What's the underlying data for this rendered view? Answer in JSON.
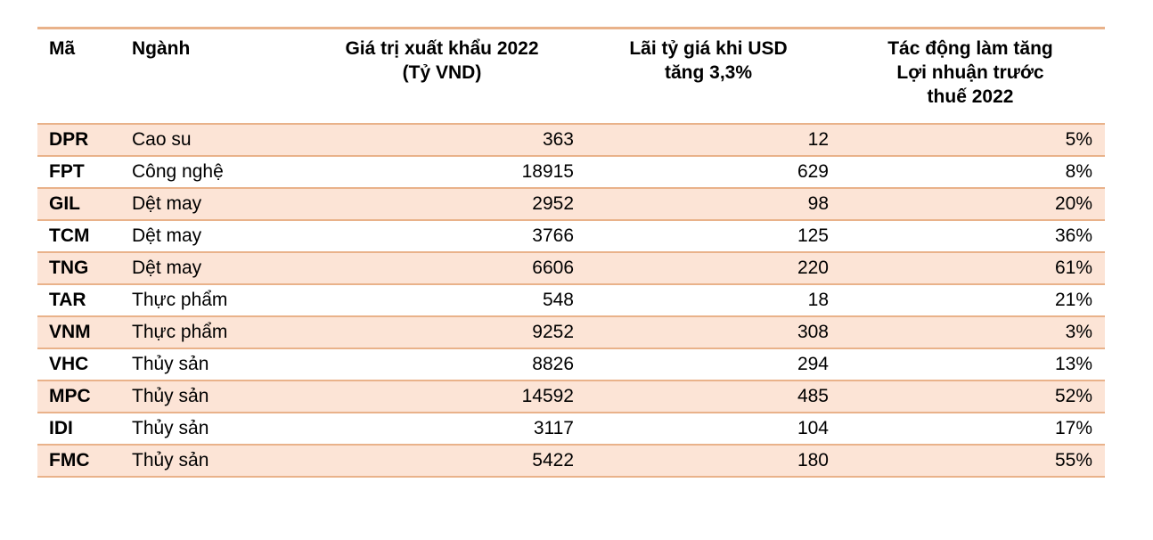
{
  "chart_data": {
    "type": "table",
    "columns": [
      {
        "label": "Mã",
        "align": "left"
      },
      {
        "label": "Ngành",
        "align": "left"
      },
      {
        "label": "Giá trị xuất khẩu 2022\n(Tỷ VND)",
        "align": "center"
      },
      {
        "label": "Lãi tỷ giá khi USD\ntăng 3,3%",
        "align": "center"
      },
      {
        "label": "Tác động làm tăng\nLợi nhuận trước\nthuế 2022",
        "align": "center"
      }
    ],
    "rows": [
      [
        "DPR",
        "Cao su",
        "363",
        "12",
        "5%"
      ],
      [
        "FPT",
        "Công nghệ",
        "18915",
        "629",
        "8%"
      ],
      [
        "GIL",
        "Dệt may",
        "2952",
        "98",
        "20%"
      ],
      [
        "TCM",
        "Dệt may",
        "3766",
        "125",
        "36%"
      ],
      [
        "TNG",
        "Dệt may",
        "6606",
        "220",
        "61%"
      ],
      [
        "TAR",
        "Thực phẩm",
        "548",
        "18",
        "21%"
      ],
      [
        "VNM",
        "Thực phẩm",
        "9252",
        "308",
        "3%"
      ],
      [
        "VHC",
        "Thủy sản",
        "8826",
        "294",
        "13%"
      ],
      [
        "MPC",
        "Thủy sản",
        "14592",
        "485",
        "52%"
      ],
      [
        "IDI",
        "Thủy sản",
        "3117",
        "104",
        "17%"
      ],
      [
        "FMC",
        "Thủy sản",
        "5422",
        "180",
        "55%"
      ]
    ],
    "layout": {
      "shaded_rows": "odd",
      "grid": "horizontal-only"
    }
  },
  "colors": {
    "row_shade": "#fce4d6",
    "border": "#e9b28a",
    "text": "#000000",
    "background": "#ffffff"
  }
}
